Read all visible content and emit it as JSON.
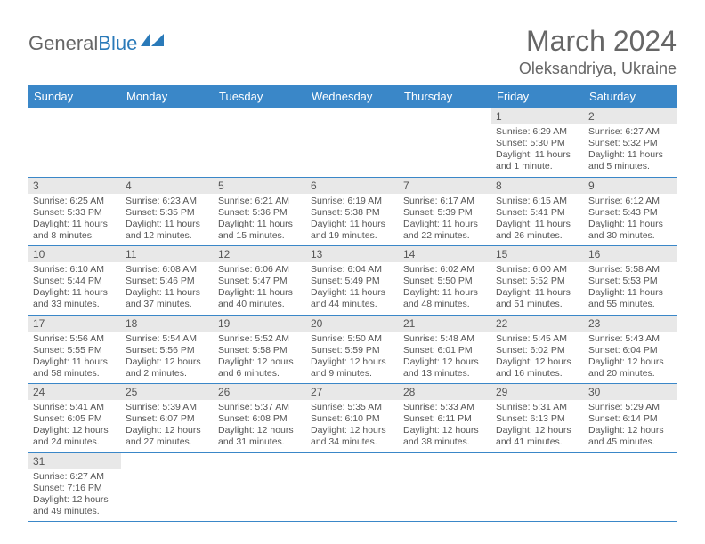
{
  "logo": {
    "text1": "General",
    "text2": "Blue"
  },
  "title": "March 2024",
  "location": "Oleksandriya, Ukraine",
  "colors": {
    "header_bg": "#3a87c8",
    "header_fg": "#ffffff",
    "daynum_bg": "#e8e8e8",
    "text": "#555555",
    "border": "#3a87c8",
    "logo_blue": "#2a7ab9"
  },
  "weekdays": [
    "Sunday",
    "Monday",
    "Tuesday",
    "Wednesday",
    "Thursday",
    "Friday",
    "Saturday"
  ],
  "firstWeekday": 5,
  "daysInMonth": 31,
  "days": {
    "1": {
      "sunrise": "6:29 AM",
      "sunset": "5:30 PM",
      "daylight": "11 hours and 1 minute."
    },
    "2": {
      "sunrise": "6:27 AM",
      "sunset": "5:32 PM",
      "daylight": "11 hours and 5 minutes."
    },
    "3": {
      "sunrise": "6:25 AM",
      "sunset": "5:33 PM",
      "daylight": "11 hours and 8 minutes."
    },
    "4": {
      "sunrise": "6:23 AM",
      "sunset": "5:35 PM",
      "daylight": "11 hours and 12 minutes."
    },
    "5": {
      "sunrise": "6:21 AM",
      "sunset": "5:36 PM",
      "daylight": "11 hours and 15 minutes."
    },
    "6": {
      "sunrise": "6:19 AM",
      "sunset": "5:38 PM",
      "daylight": "11 hours and 19 minutes."
    },
    "7": {
      "sunrise": "6:17 AM",
      "sunset": "5:39 PM",
      "daylight": "11 hours and 22 minutes."
    },
    "8": {
      "sunrise": "6:15 AM",
      "sunset": "5:41 PM",
      "daylight": "11 hours and 26 minutes."
    },
    "9": {
      "sunrise": "6:12 AM",
      "sunset": "5:43 PM",
      "daylight": "11 hours and 30 minutes."
    },
    "10": {
      "sunrise": "6:10 AM",
      "sunset": "5:44 PM",
      "daylight": "11 hours and 33 minutes."
    },
    "11": {
      "sunrise": "6:08 AM",
      "sunset": "5:46 PM",
      "daylight": "11 hours and 37 minutes."
    },
    "12": {
      "sunrise": "6:06 AM",
      "sunset": "5:47 PM",
      "daylight": "11 hours and 40 minutes."
    },
    "13": {
      "sunrise": "6:04 AM",
      "sunset": "5:49 PM",
      "daylight": "11 hours and 44 minutes."
    },
    "14": {
      "sunrise": "6:02 AM",
      "sunset": "5:50 PM",
      "daylight": "11 hours and 48 minutes."
    },
    "15": {
      "sunrise": "6:00 AM",
      "sunset": "5:52 PM",
      "daylight": "11 hours and 51 minutes."
    },
    "16": {
      "sunrise": "5:58 AM",
      "sunset": "5:53 PM",
      "daylight": "11 hours and 55 minutes."
    },
    "17": {
      "sunrise": "5:56 AM",
      "sunset": "5:55 PM",
      "daylight": "11 hours and 58 minutes."
    },
    "18": {
      "sunrise": "5:54 AM",
      "sunset": "5:56 PM",
      "daylight": "12 hours and 2 minutes."
    },
    "19": {
      "sunrise": "5:52 AM",
      "sunset": "5:58 PM",
      "daylight": "12 hours and 6 minutes."
    },
    "20": {
      "sunrise": "5:50 AM",
      "sunset": "5:59 PM",
      "daylight": "12 hours and 9 minutes."
    },
    "21": {
      "sunrise": "5:48 AM",
      "sunset": "6:01 PM",
      "daylight": "12 hours and 13 minutes."
    },
    "22": {
      "sunrise": "5:45 AM",
      "sunset": "6:02 PM",
      "daylight": "12 hours and 16 minutes."
    },
    "23": {
      "sunrise": "5:43 AM",
      "sunset": "6:04 PM",
      "daylight": "12 hours and 20 minutes."
    },
    "24": {
      "sunrise": "5:41 AM",
      "sunset": "6:05 PM",
      "daylight": "12 hours and 24 minutes."
    },
    "25": {
      "sunrise": "5:39 AM",
      "sunset": "6:07 PM",
      "daylight": "12 hours and 27 minutes."
    },
    "26": {
      "sunrise": "5:37 AM",
      "sunset": "6:08 PM",
      "daylight": "12 hours and 31 minutes."
    },
    "27": {
      "sunrise": "5:35 AM",
      "sunset": "6:10 PM",
      "daylight": "12 hours and 34 minutes."
    },
    "28": {
      "sunrise": "5:33 AM",
      "sunset": "6:11 PM",
      "daylight": "12 hours and 38 minutes."
    },
    "29": {
      "sunrise": "5:31 AM",
      "sunset": "6:13 PM",
      "daylight": "12 hours and 41 minutes."
    },
    "30": {
      "sunrise": "5:29 AM",
      "sunset": "6:14 PM",
      "daylight": "12 hours and 45 minutes."
    },
    "31": {
      "sunrise": "6:27 AM",
      "sunset": "7:16 PM",
      "daylight": "12 hours and 49 minutes."
    }
  }
}
